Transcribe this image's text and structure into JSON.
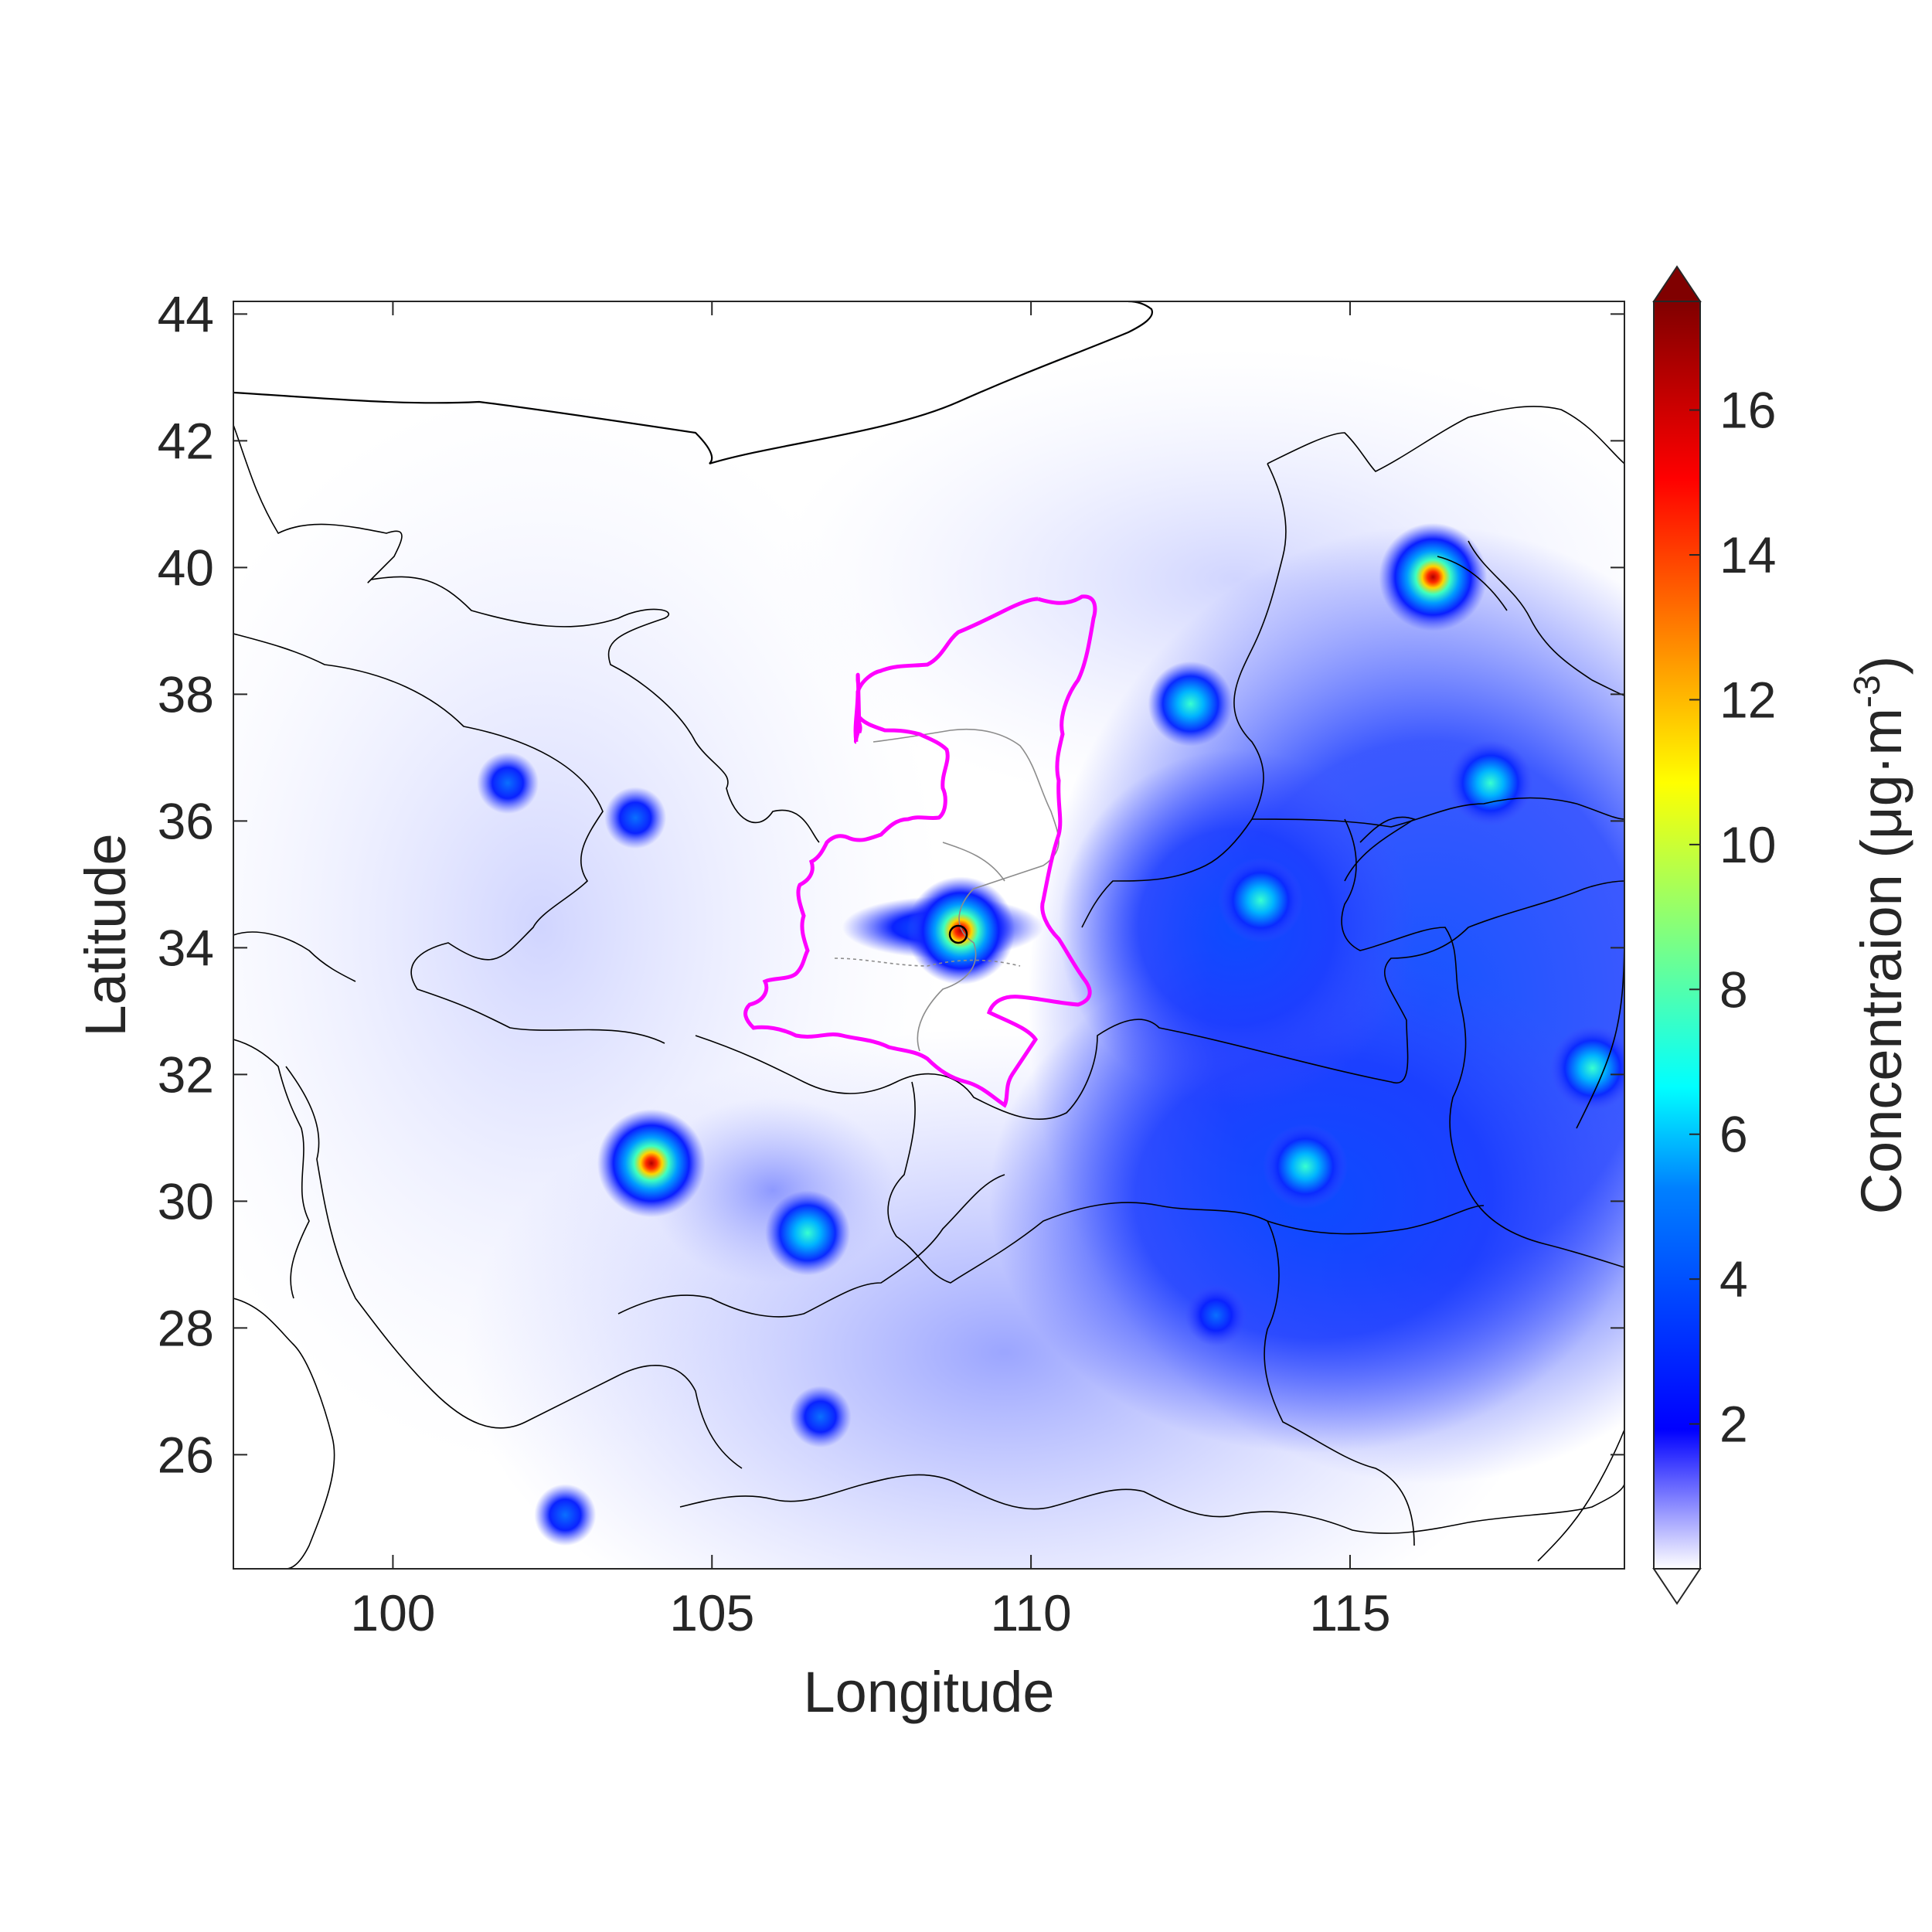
{
  "map": {
    "x_ticks": [
      "100",
      "105",
      "110",
      "115"
    ],
    "y_ticks": [
      "26",
      "28",
      "30",
      "32",
      "34",
      "36",
      "38",
      "40",
      "42",
      "44"
    ],
    "x_tick_values": [
      100,
      105,
      110,
      115
    ],
    "y_tick_values": [
      26,
      28,
      30,
      32,
      34,
      36,
      38,
      40,
      42,
      44
    ],
    "xlabel": "Longitude",
    "ylabel": "Latitude",
    "lon_range": [
      97.5,
      119.3
    ],
    "lat_range": [
      24.2,
      44.2
    ],
    "highlight_color": "#ff00ff",
    "boundary_color": "#000000",
    "subboundary_color": "#8c8c8c",
    "marker": "open-circle",
    "hotspots": [
      {
        "lon": 108.9,
        "lat": 34.27,
        "value": 16
      },
      {
        "lon": 116.3,
        "lat": 39.85,
        "value": 16
      },
      {
        "lon": 104.05,
        "lat": 30.6,
        "value": 16
      },
      {
        "lon": 106.5,
        "lat": 29.5,
        "value": 6
      },
      {
        "lon": 113.6,
        "lat": 34.75,
        "value": 6
      },
      {
        "lon": 114.3,
        "lat": 30.55,
        "value": 5
      },
      {
        "lon": 112.5,
        "lat": 37.85,
        "value": 5
      },
      {
        "lon": 117.2,
        "lat": 36.6,
        "value": 5
      },
      {
        "lon": 118.8,
        "lat": 32.1,
        "value": 5
      },
      {
        "lon": 112.9,
        "lat": 28.2,
        "value": 4
      },
      {
        "lon": 102.7,
        "lat": 25.05,
        "value": 3
      },
      {
        "lon": 103.8,
        "lat": 36.05,
        "value": 3
      },
      {
        "lon": 101.8,
        "lat": 36.6,
        "value": 3
      },
      {
        "lon": 106.7,
        "lat": 26.6,
        "value": 3
      }
    ]
  },
  "colorbar": {
    "label": "Concentraion (μg·m",
    "label_sup": "-3",
    "label_close": ")",
    "ticks": [
      "2",
      "4",
      "6",
      "8",
      "10",
      "12",
      "14",
      "16"
    ],
    "tick_values": [
      2,
      4,
      6,
      8,
      10,
      12,
      14,
      16
    ],
    "min": 0,
    "max": 17.5,
    "colormap": [
      "#ffffff",
      "#0000ff",
      "#00ffff",
      "#ffff00",
      "#ff0000",
      "#800000"
    ],
    "extend": "both"
  }
}
